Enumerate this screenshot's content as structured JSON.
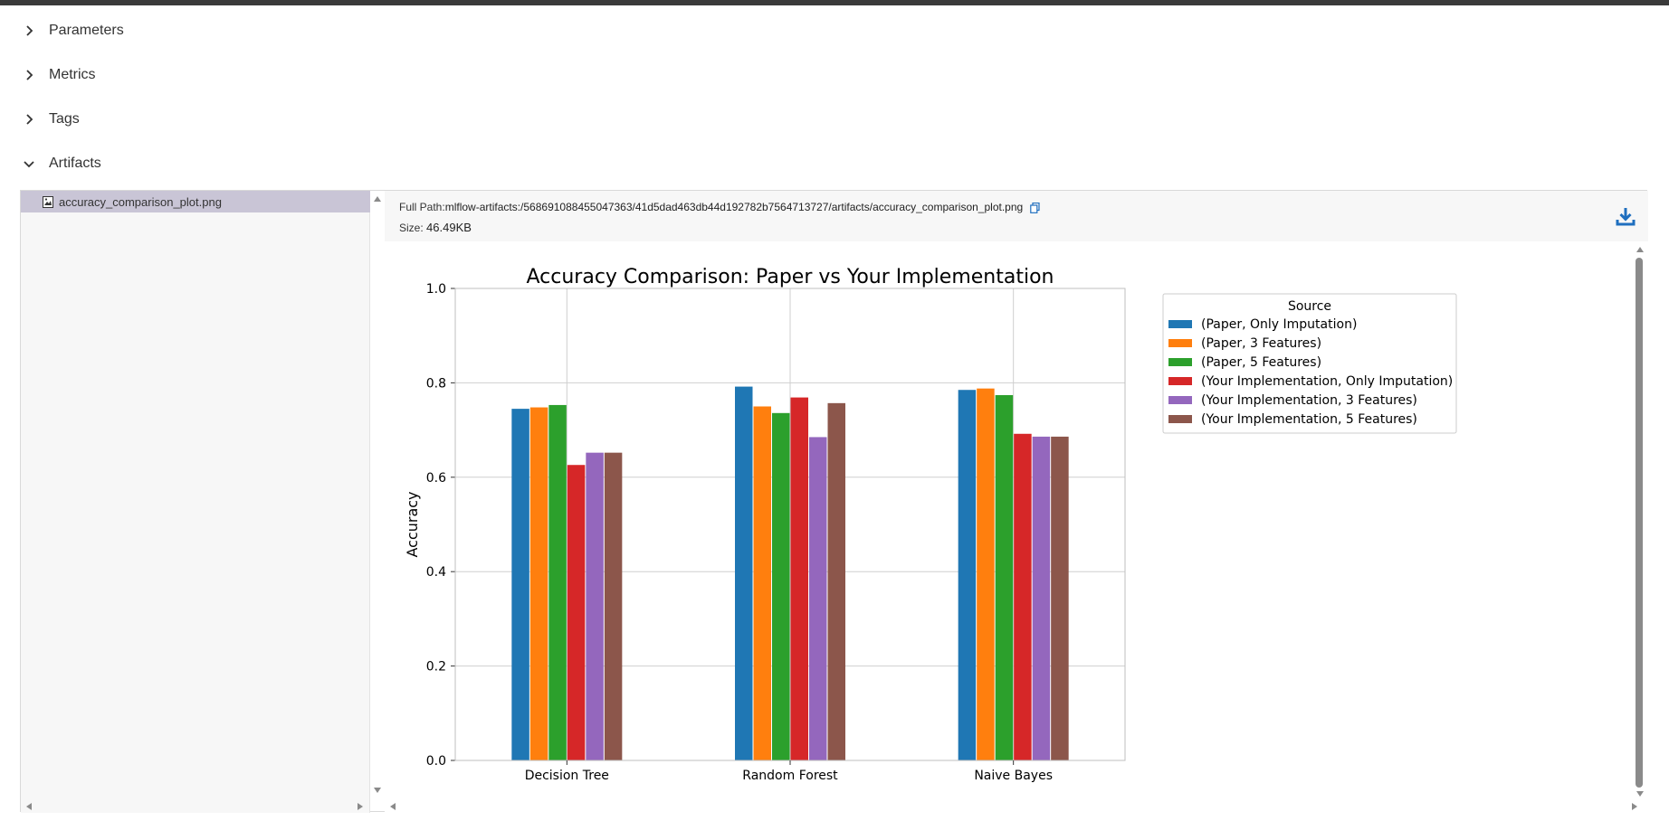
{
  "sections": {
    "parameters": "Parameters",
    "metrics": "Metrics",
    "tags": "Tags",
    "artifacts": "Artifacts"
  },
  "artifacts": {
    "files": [
      {
        "name": "accuracy_comparison_plot.png"
      }
    ],
    "details": {
      "full_path_label": "Full Path:",
      "full_path": "mlflow-artifacts:/568691088455047363/41d5dad463db44d192782b7564713727/artifacts/accuracy_comparison_plot.png",
      "size_label": "Size:",
      "size": "46.49KB"
    }
  },
  "colors": {
    "series": [
      "#1f77b4",
      "#ff7f0e",
      "#2ca02c",
      "#d62728",
      "#9467bd",
      "#8c564b"
    ],
    "selected_file_bg": "#c9c5d6",
    "download_icon": "#1f6fbf"
  },
  "chart_data": {
    "type": "bar",
    "title": "Accuracy Comparison: Paper vs Your Implementation",
    "xlabel": "",
    "ylabel": "Accuracy",
    "ylim": [
      0,
      1.0
    ],
    "yticks": [
      "0.0",
      "0.2",
      "0.4",
      "0.6",
      "0.8",
      "1.0"
    ],
    "grid": true,
    "categories": [
      "Decision Tree",
      "Random Forest",
      "Naive Bayes"
    ],
    "legend_title": "Source",
    "legend_position": "right, outside plot area",
    "series": [
      {
        "name": "(Paper, Only Imputation)",
        "values": [
          0.745,
          0.792,
          0.785
        ]
      },
      {
        "name": "(Paper, 3 Features)",
        "values": [
          0.748,
          0.75,
          0.788
        ]
      },
      {
        "name": "(Paper, 5 Features)",
        "values": [
          0.753,
          0.736,
          0.774
        ]
      },
      {
        "name": "(Your Implementation, Only Imputation)",
        "values": [
          0.626,
          0.769,
          0.692
        ]
      },
      {
        "name": "(Your Implementation, 3 Features)",
        "values": [
          0.652,
          0.685,
          0.686
        ]
      },
      {
        "name": "(Your Implementation, 5 Features)",
        "values": [
          0.652,
          0.757,
          0.686
        ]
      }
    ]
  }
}
